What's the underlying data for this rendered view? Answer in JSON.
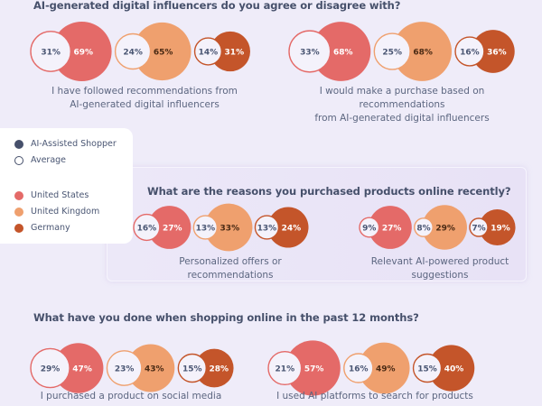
{
  "colors": {
    "us": "#E46A68",
    "uk": "#EFA06E",
    "de": "#C4552A",
    "navy": "#46506B",
    "background": "#EFECF9"
  },
  "legend": {
    "items": [
      {
        "label": "AI-Assisted Shopper",
        "style": "filled",
        "color": "#46506B"
      },
      {
        "label": "Average",
        "style": "outline",
        "color": "#46506B"
      },
      {
        "label": "United States",
        "style": "filled",
        "color": "#E46A68"
      },
      {
        "label": "United Kingdom",
        "style": "filled",
        "color": "#EFA06E"
      },
      {
        "label": "Germany",
        "style": "filled",
        "color": "#C4552A"
      }
    ]
  },
  "chart_data": [
    {
      "type": "bubble-pairs",
      "title": "AI-generated digital influencers do you agree or disagree with?",
      "legend": [
        "AI-Assisted Shopper",
        "Average",
        "United States",
        "United Kingdom",
        "Germany"
      ],
      "groups": [
        {
          "label_lines": [
            "I have followed recommendations from",
            "AI-generated digital influencers"
          ],
          "pairs": [
            {
              "country": "United States",
              "average": 31,
              "ai_assisted": 69
            },
            {
              "country": "United Kingdom",
              "average": 24,
              "ai_assisted": 65
            },
            {
              "country": "Germany",
              "average": 14,
              "ai_assisted": 31
            }
          ]
        },
        {
          "label_lines": [
            "I would make a purchase based on recommendations",
            "from AI-generated digital influencers"
          ],
          "pairs": [
            {
              "country": "United States",
              "average": 33,
              "ai_assisted": 68
            },
            {
              "country": "United Kingdom",
              "average": 25,
              "ai_assisted": 68
            },
            {
              "country": "Germany",
              "average": 16,
              "ai_assisted": 36
            }
          ]
        }
      ]
    },
    {
      "type": "bubble-pairs",
      "title": "What are the reasons you purchased products online recently?",
      "groups": [
        {
          "label_lines": [
            "Personalized offers or recommendations"
          ],
          "pairs": [
            {
              "country": "United States",
              "average": 16,
              "ai_assisted": 27
            },
            {
              "country": "United Kingdom",
              "average": 13,
              "ai_assisted": 33
            },
            {
              "country": "Germany",
              "average": 13,
              "ai_assisted": 24
            }
          ]
        },
        {
          "label_lines": [
            "Relevant AI-powered product suggestions"
          ],
          "pairs": [
            {
              "country": "United States",
              "average": 9,
              "ai_assisted": 27
            },
            {
              "country": "United Kingdom",
              "average": 8,
              "ai_assisted": 29
            },
            {
              "country": "Germany",
              "average": 7,
              "ai_assisted": 19
            }
          ]
        }
      ]
    },
    {
      "type": "bubble-pairs",
      "title": "What have you done when shopping online in the past 12 months?",
      "groups": [
        {
          "label_lines": [
            "I purchased a product on social media"
          ],
          "pairs": [
            {
              "country": "United States",
              "average": 29,
              "ai_assisted": 47
            },
            {
              "country": "United Kingdom",
              "average": 23,
              "ai_assisted": 43
            },
            {
              "country": "Germany",
              "average": 15,
              "ai_assisted": 28
            }
          ]
        },
        {
          "label_lines": [
            "I used AI platforms to search for products"
          ],
          "pairs": [
            {
              "country": "United States",
              "average": 21,
              "ai_assisted": 57
            },
            {
              "country": "United Kingdom",
              "average": 16,
              "ai_assisted": 49
            },
            {
              "country": "Germany",
              "average": 15,
              "ai_assisted": 40
            }
          ]
        }
      ]
    }
  ]
}
